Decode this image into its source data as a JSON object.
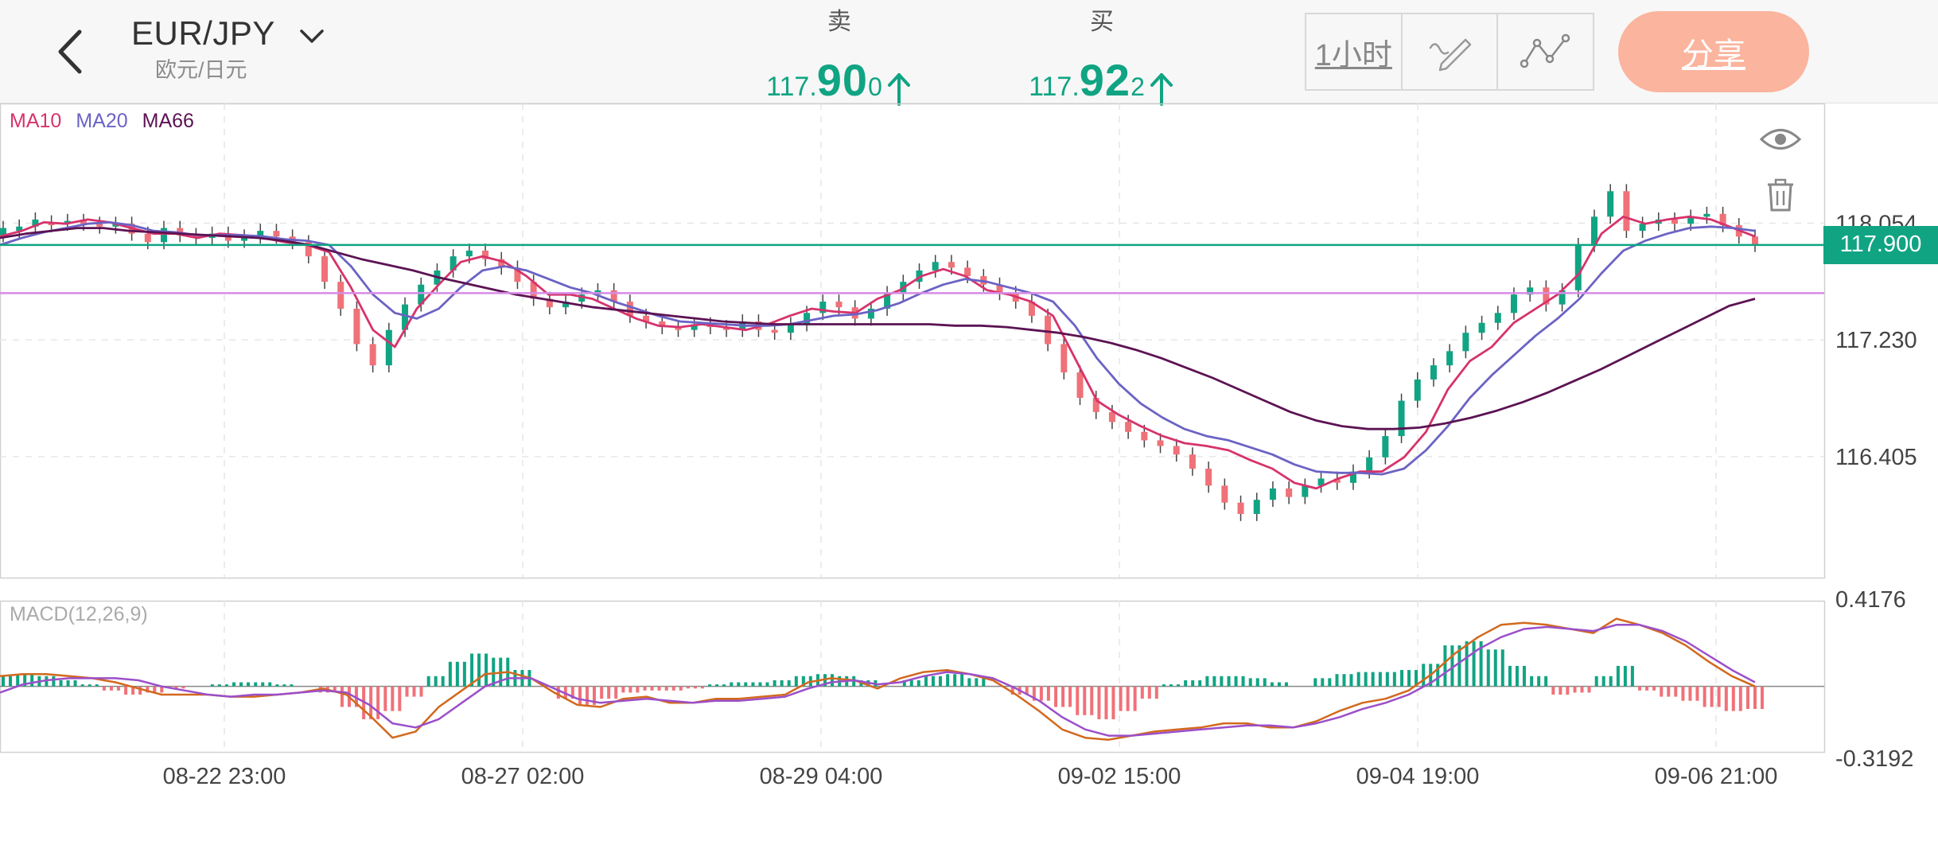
{
  "header": {
    "pair": "EUR/JPY",
    "pair_sub": "欧元/日元",
    "sell": {
      "label": "卖",
      "price_small": "117.",
      "price_big": "90",
      "price_end": "0"
    },
    "buy": {
      "label": "买",
      "price_small": "117.",
      "price_big": "92",
      "price_end": "2"
    },
    "timeframe": "1小时",
    "share": "分享"
  },
  "colors": {
    "green": "#10a483",
    "red": "#f07178",
    "ma10": "#d6336c",
    "ma20": "#6b63c4",
    "ma66": "#5c1353",
    "macd_dif": "#d2691e",
    "macd_dea": "#9b4fc9",
    "bid_line": "#10a483",
    "level_line": "#d78be6",
    "share_btn": "#fbb49d"
  },
  "icons": {
    "back": "chevron-left-icon",
    "dropdown": "chevron-down-icon",
    "draw": "pencil-icon",
    "indicator": "line-chart-icon",
    "eye": "eye-icon",
    "trash": "trash-icon"
  },
  "chart_data": {
    "type": "line",
    "instrument": "EUR/JPY",
    "interval": "1小时",
    "legend": [
      "MA10",
      "MA20",
      "MA66"
    ],
    "x_ticks": [
      "08-22 23:00",
      "08-27 02:00",
      "08-29 04:00",
      "09-02 15:00",
      "09-04 19:00",
      "09-06 21:00"
    ],
    "y_ticks": [
      "118.054",
      "117.230",
      "116.405"
    ],
    "y_tick_values": [
      118.054,
      117.23,
      116.405
    ],
    "current_price": "117.900",
    "current_price_value": 117.9,
    "level_line_value": 117.56,
    "ylim": [
      115.55,
      118.9
    ],
    "series": [
      {
        "name": "MA10",
        "values": [
          117.96,
          118.0,
          118.06,
          118.05,
          118.08,
          118.06,
          118.02,
          117.98,
          117.98,
          117.95,
          117.98,
          117.97,
          117.95,
          117.92,
          117.9,
          117.85,
          117.6,
          117.3,
          117.18,
          117.45,
          117.62,
          117.78,
          117.82,
          117.78,
          117.68,
          117.55,
          117.55,
          117.52,
          117.45,
          117.38,
          117.33,
          117.32,
          117.34,
          117.32,
          117.3,
          117.34,
          117.4,
          117.45,
          117.43,
          117.42,
          117.52,
          117.58,
          117.68,
          117.73,
          117.68,
          117.58,
          117.55,
          117.5,
          117.4,
          117.1,
          116.8,
          116.7,
          116.62,
          116.55,
          116.5,
          116.48,
          116.45,
          116.38,
          116.32,
          116.22,
          116.18,
          116.25,
          116.3,
          116.3,
          116.4,
          116.58,
          116.88,
          117.08,
          117.18,
          117.35,
          117.45,
          117.55,
          117.7,
          117.98,
          118.1,
          118.05,
          118.08,
          118.1,
          118.08,
          118.02,
          117.96
        ]
      },
      {
        "name": "MA20",
        "values": [
          117.9,
          117.95,
          117.99,
          118.02,
          118.05,
          118.06,
          118.04,
          118.0,
          117.99,
          117.97,
          117.97,
          117.97,
          117.96,
          117.94,
          117.93,
          117.9,
          117.75,
          117.55,
          117.42,
          117.38,
          117.45,
          117.6,
          117.72,
          117.75,
          117.72,
          117.66,
          117.6,
          117.56,
          117.5,
          117.45,
          117.4,
          117.36,
          117.35,
          117.34,
          117.33,
          117.33,
          117.34,
          117.37,
          117.4,
          117.41,
          117.44,
          117.49,
          117.56,
          117.62,
          117.66,
          117.64,
          117.6,
          117.56,
          117.5,
          117.33,
          117.1,
          116.92,
          116.78,
          116.68,
          116.6,
          116.55,
          116.52,
          116.47,
          116.42,
          116.35,
          116.3,
          116.29,
          116.29,
          116.28,
          116.32,
          116.45,
          116.62,
          116.82,
          116.98,
          117.12,
          117.26,
          117.38,
          117.52,
          117.7,
          117.86,
          117.93,
          117.98,
          118.02,
          118.03,
          118.02,
          118.0
        ]
      },
      {
        "name": "MA66",
        "values": [
          117.95,
          117.98,
          118.0,
          118.02,
          118.02,
          118.0,
          117.99,
          117.98,
          117.97,
          117.96,
          117.95,
          117.93,
          117.9,
          117.85,
          117.8,
          117.76,
          117.72,
          117.67,
          117.63,
          117.59,
          117.55,
          117.52,
          117.49,
          117.46,
          117.44,
          117.42,
          117.4,
          117.38,
          117.36,
          117.35,
          117.34,
          117.34,
          117.34,
          117.34,
          117.34,
          117.34,
          117.34,
          117.33,
          117.33,
          117.32,
          117.3,
          117.28,
          117.25,
          117.21,
          117.16,
          117.1,
          117.03,
          116.96,
          116.88,
          116.8,
          116.72,
          116.66,
          116.62,
          116.6,
          116.6,
          116.61,
          116.64,
          116.68,
          116.73,
          116.79,
          116.86,
          116.94,
          117.02,
          117.11,
          117.2,
          117.29,
          117.38,
          117.47,
          117.52
        ]
      }
    ],
    "candles": [
      [
        117.97,
        118.02
      ],
      [
        118.0,
        118.03
      ],
      [
        118.03,
        118.08
      ],
      [
        118.06,
        118.04
      ],
      [
        118.05,
        118.07
      ],
      [
        118.07,
        118.05
      ],
      [
        118.05,
        118.03
      ],
      [
        118.03,
        118.05
      ],
      [
        118.05,
        117.98
      ],
      [
        117.98,
        117.92
      ],
      [
        117.92,
        118.02
      ],
      [
        118.02,
        117.97
      ],
      [
        117.97,
        117.95
      ],
      [
        117.95,
        117.98
      ],
      [
        117.98,
        117.93
      ],
      [
        117.93,
        117.96
      ],
      [
        117.96,
        118.0
      ],
      [
        118.0,
        117.96
      ],
      [
        117.96,
        117.92
      ],
      [
        117.92,
        117.82
      ],
      [
        117.82,
        117.64
      ],
      [
        117.64,
        117.45
      ],
      [
        117.45,
        117.2
      ],
      [
        117.2,
        117.05
      ],
      [
        117.05,
        117.3
      ],
      [
        117.3,
        117.48
      ],
      [
        117.48,
        117.62
      ],
      [
        117.62,
        117.72
      ],
      [
        117.72,
        117.82
      ],
      [
        117.82,
        117.86
      ],
      [
        117.86,
        117.8
      ],
      [
        117.8,
        117.74
      ],
      [
        117.74,
        117.64
      ],
      [
        117.64,
        117.52
      ],
      [
        117.52,
        117.46
      ],
      [
        117.46,
        117.5
      ],
      [
        117.5,
        117.55
      ],
      [
        117.55,
        117.58
      ],
      [
        117.58,
        117.5
      ],
      [
        117.5,
        117.4
      ],
      [
        117.4,
        117.36
      ],
      [
        117.36,
        117.32
      ],
      [
        117.32,
        117.3
      ],
      [
        117.3,
        117.34
      ],
      [
        117.34,
        117.32
      ],
      [
        117.32,
        117.3
      ],
      [
        117.3,
        117.36
      ],
      [
        117.36,
        117.3
      ],
      [
        117.3,
        117.28
      ],
      [
        117.28,
        117.34
      ],
      [
        117.34,
        117.42
      ],
      [
        117.42,
        117.5
      ],
      [
        117.5,
        117.46
      ],
      [
        117.46,
        117.38
      ],
      [
        117.38,
        117.45
      ],
      [
        117.45,
        117.56
      ],
      [
        117.56,
        117.64
      ],
      [
        117.64,
        117.72
      ],
      [
        117.72,
        117.78
      ],
      [
        117.78,
        117.74
      ],
      [
        117.74,
        117.68
      ],
      [
        117.68,
        117.62
      ],
      [
        117.62,
        117.56
      ],
      [
        117.56,
        117.5
      ],
      [
        117.5,
        117.4
      ],
      [
        117.4,
        117.2
      ],
      [
        117.2,
        117.0
      ],
      [
        117.0,
        116.82
      ],
      [
        116.82,
        116.72
      ],
      [
        116.72,
        116.65
      ],
      [
        116.65,
        116.58
      ],
      [
        116.58,
        116.52
      ],
      [
        116.52,
        116.48
      ],
      [
        116.48,
        116.42
      ],
      [
        116.42,
        116.32
      ],
      [
        116.32,
        116.2
      ],
      [
        116.2,
        116.08
      ],
      [
        116.08,
        116.0
      ],
      [
        116.0,
        116.1
      ],
      [
        116.1,
        116.18
      ],
      [
        116.18,
        116.12
      ],
      [
        116.12,
        116.2
      ],
      [
        116.2,
        116.25
      ],
      [
        116.25,
        116.22
      ],
      [
        116.22,
        116.3
      ],
      [
        116.3,
        116.4
      ],
      [
        116.4,
        116.55
      ],
      [
        116.55,
        116.8
      ],
      [
        116.8,
        116.95
      ],
      [
        116.95,
        117.05
      ],
      [
        117.05,
        117.15
      ],
      [
        117.15,
        117.28
      ],
      [
        117.28,
        117.35
      ],
      [
        117.35,
        117.42
      ],
      [
        117.42,
        117.55
      ],
      [
        117.55,
        117.6
      ],
      [
        117.6,
        117.48
      ],
      [
        117.48,
        117.58
      ],
      [
        117.58,
        117.9
      ],
      [
        117.9,
        118.1
      ],
      [
        118.1,
        118.28
      ],
      [
        118.28,
        118.0
      ],
      [
        118.0,
        118.05
      ],
      [
        118.05,
        118.08
      ],
      [
        118.08,
        118.05
      ],
      [
        118.05,
        118.1
      ],
      [
        118.1,
        118.12
      ],
      [
        118.12,
        118.04
      ],
      [
        118.04,
        117.96
      ],
      [
        117.96,
        117.9
      ]
    ],
    "macd": {
      "label": "MACD(12,26,9)",
      "ylim": [
        -0.3192,
        0.4176
      ],
      "y_ticks": [
        "0.4176",
        "-0.3192"
      ],
      "histogram": [
        0.05,
        0.06,
        0.05,
        0.03,
        0.01,
        -0.02,
        -0.04,
        -0.03,
        -0.01,
        0.0,
        0.01,
        0.02,
        0.02,
        0.01,
        0.0,
        -0.03,
        -0.1,
        -0.16,
        -0.12,
        -0.05,
        0.05,
        0.12,
        0.16,
        0.14,
        0.08,
        0.0,
        -0.06,
        -0.09,
        -0.06,
        -0.03,
        -0.02,
        -0.02,
        -0.01,
        0.01,
        0.02,
        0.02,
        0.03,
        0.05,
        0.06,
        0.05,
        0.03,
        0.0,
        0.03,
        0.05,
        0.06,
        0.04,
        0.0,
        -0.04,
        -0.07,
        -0.1,
        -0.14,
        -0.16,
        -0.12,
        -0.06,
        0.01,
        0.03,
        0.05,
        0.05,
        0.04,
        0.02,
        0.0,
        0.04,
        0.06,
        0.07,
        0.07,
        0.08,
        0.11,
        0.2,
        0.22,
        0.18,
        0.1,
        0.05,
        -0.04,
        -0.03,
        0.05,
        0.1,
        -0.02,
        -0.05,
        -0.07,
        -0.1,
        -0.12,
        -0.11
      ],
      "dif": [
        0.05,
        0.06,
        0.06,
        0.05,
        0.04,
        0.02,
        -0.01,
        -0.04,
        -0.04,
        -0.04,
        -0.05,
        -0.05,
        -0.04,
        -0.03,
        -0.01,
        -0.04,
        -0.14,
        -0.25,
        -0.22,
        -0.1,
        -0.02,
        0.06,
        0.07,
        0.04,
        -0.03,
        -0.09,
        -0.1,
        -0.06,
        -0.05,
        -0.08,
        -0.08,
        -0.06,
        -0.06,
        -0.05,
        -0.04,
        0.02,
        0.04,
        0.03,
        -0.01,
        0.04,
        0.07,
        0.08,
        0.06,
        0.03,
        -0.04,
        -0.12,
        -0.21,
        -0.25,
        -0.26,
        -0.24,
        -0.22,
        -0.21,
        -0.2,
        -0.18,
        -0.18,
        -0.2,
        -0.2,
        -0.17,
        -0.12,
        -0.08,
        -0.06,
        -0.02,
        0.06,
        0.16,
        0.24,
        0.3,
        0.31,
        0.3,
        0.28,
        0.26,
        0.33,
        0.3,
        0.26,
        0.2,
        0.12,
        0.05,
        0.0
      ],
      "dea": [
        -0.03,
        0.01,
        0.03,
        0.04,
        0.04,
        0.04,
        0.03,
        0.0,
        -0.02,
        -0.04,
        -0.05,
        -0.04,
        -0.04,
        -0.03,
        -0.02,
        -0.03,
        -0.09,
        -0.18,
        -0.2,
        -0.16,
        -0.08,
        0.0,
        0.04,
        0.04,
        -0.01,
        -0.06,
        -0.08,
        -0.07,
        -0.06,
        -0.07,
        -0.08,
        -0.07,
        -0.07,
        -0.06,
        -0.05,
        -0.01,
        0.02,
        0.03,
        0.01,
        0.02,
        0.05,
        0.07,
        0.06,
        0.04,
        -0.01,
        -0.07,
        -0.15,
        -0.21,
        -0.24,
        -0.24,
        -0.23,
        -0.22,
        -0.21,
        -0.2,
        -0.19,
        -0.19,
        -0.2,
        -0.18,
        -0.15,
        -0.11,
        -0.08,
        -0.04,
        0.02,
        0.1,
        0.18,
        0.24,
        0.28,
        0.29,
        0.28,
        0.27,
        0.3,
        0.3,
        0.27,
        0.22,
        0.15,
        0.08,
        0.02
      ]
    }
  }
}
